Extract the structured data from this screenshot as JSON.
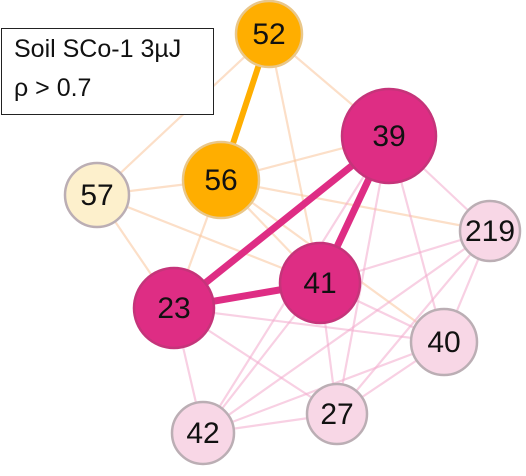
{
  "legend": {
    "line1": "Soil SCo-1 3µJ",
    "line2": "ρ > 0.7"
  },
  "colors": {
    "orange": "#FFAE00",
    "magenta": "#DE2D84",
    "pale_pink": "#F8D7E6",
    "pale_yellow": "#FDF0CC",
    "node_border_pale": "#BBAEB4",
    "edge_faint_pink": "#F2A9CC",
    "edge_faint_orange": "#FAC59A"
  },
  "network": {
    "nodes": [
      {
        "id": "52",
        "label": "52",
        "role": "orange"
      },
      {
        "id": "56",
        "label": "56",
        "role": "orange"
      },
      {
        "id": "57",
        "label": "57",
        "role": "pale_yellow"
      },
      {
        "id": "39",
        "label": "39",
        "role": "magenta"
      },
      {
        "id": "219",
        "label": "219",
        "role": "pale_pink"
      },
      {
        "id": "41",
        "label": "41",
        "role": "magenta"
      },
      {
        "id": "23",
        "label": "23",
        "role": "magenta"
      },
      {
        "id": "40",
        "label": "40",
        "role": "pale_pink"
      },
      {
        "id": "27",
        "label": "27",
        "role": "pale_pink"
      },
      {
        "id": "42",
        "label": "42",
        "role": "pale_pink"
      }
    ],
    "edges": [
      {
        "source": "52",
        "target": "56",
        "strength": "strong",
        "color": "orange"
      },
      {
        "source": "39",
        "target": "23",
        "strength": "strong",
        "color": "magenta"
      },
      {
        "source": "39",
        "target": "41",
        "strength": "strong",
        "color": "magenta"
      },
      {
        "source": "23",
        "target": "41",
        "strength": "strong",
        "color": "magenta"
      },
      {
        "source": "56",
        "target": "57",
        "strength": "weak",
        "color": "orange"
      },
      {
        "source": "52",
        "target": "57",
        "strength": "weak",
        "color": "orange"
      },
      {
        "source": "52",
        "target": "39",
        "strength": "weak",
        "color": "orange"
      },
      {
        "source": "56",
        "target": "39",
        "strength": "weak",
        "color": "orange"
      },
      {
        "source": "56",
        "target": "41",
        "strength": "weak",
        "color": "orange"
      },
      {
        "source": "56",
        "target": "23",
        "strength": "weak",
        "color": "orange"
      },
      {
        "source": "56",
        "target": "219",
        "strength": "weak",
        "color": "orange"
      },
      {
        "source": "56",
        "target": "40",
        "strength": "weak",
        "color": "orange"
      },
      {
        "source": "57",
        "target": "41",
        "strength": "weak",
        "color": "orange"
      },
      {
        "source": "57",
        "target": "23",
        "strength": "weak",
        "color": "orange"
      },
      {
        "source": "52",
        "target": "41",
        "strength": "weak",
        "color": "orange"
      },
      {
        "source": "39",
        "target": "219",
        "strength": "weak",
        "color": "pink"
      },
      {
        "source": "39",
        "target": "40",
        "strength": "weak",
        "color": "pink"
      },
      {
        "source": "39",
        "target": "27",
        "strength": "weak",
        "color": "pink"
      },
      {
        "source": "39",
        "target": "42",
        "strength": "weak",
        "color": "pink"
      },
      {
        "source": "41",
        "target": "219",
        "strength": "weak",
        "color": "pink"
      },
      {
        "source": "41",
        "target": "40",
        "strength": "weak",
        "color": "pink"
      },
      {
        "source": "41",
        "target": "27",
        "strength": "weak",
        "color": "pink"
      },
      {
        "source": "41",
        "target": "42",
        "strength": "weak",
        "color": "pink"
      },
      {
        "source": "23",
        "target": "40",
        "strength": "weak",
        "color": "pink"
      },
      {
        "source": "23",
        "target": "27",
        "strength": "weak",
        "color": "pink"
      },
      {
        "source": "23",
        "target": "42",
        "strength": "weak",
        "color": "pink"
      },
      {
        "source": "219",
        "target": "40",
        "strength": "weak",
        "color": "pink"
      },
      {
        "source": "219",
        "target": "27",
        "strength": "weak",
        "color": "pink"
      },
      {
        "source": "40",
        "target": "27",
        "strength": "weak",
        "color": "pink"
      },
      {
        "source": "40",
        "target": "42",
        "strength": "weak",
        "color": "pink"
      },
      {
        "source": "27",
        "target": "42",
        "strength": "weak",
        "color": "pink"
      },
      {
        "source": "219",
        "target": "42",
        "strength": "weak",
        "color": "pink"
      }
    ]
  }
}
